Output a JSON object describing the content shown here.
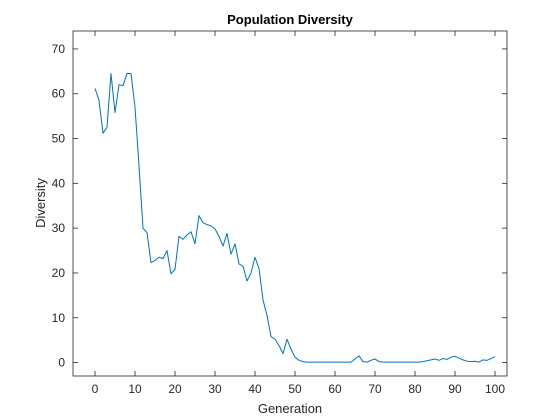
{
  "chart_data": {
    "type": "line",
    "title": "Population Diversity",
    "xlabel": "Generation",
    "ylabel": "Diversity",
    "xlim": [
      -5.5,
      103
    ],
    "ylim": [
      -3,
      74
    ],
    "xticks": [
      0,
      10,
      20,
      30,
      40,
      50,
      60,
      70,
      80,
      90,
      100
    ],
    "yticks": [
      0,
      10,
      20,
      30,
      40,
      50,
      60,
      70
    ],
    "grid": false,
    "legend": "none",
    "colors": {
      "line": "#0072BD",
      "axis": "#262626"
    },
    "series": [
      {
        "x": [
          0,
          1,
          2,
          3,
          4,
          5,
          6,
          7,
          8,
          9,
          10,
          11,
          12,
          13,
          14,
          15,
          16,
          17,
          18,
          19,
          20,
          21,
          22,
          23,
          24,
          25,
          26,
          27,
          28,
          29,
          30,
          31,
          32,
          33,
          34,
          35,
          36,
          37,
          38,
          39,
          40,
          41,
          42,
          43,
          44,
          45,
          46,
          47,
          48,
          49,
          50,
          51,
          52,
          53,
          54,
          55,
          56,
          57,
          58,
          59,
          60,
          61,
          62,
          63,
          64,
          65,
          66,
          67,
          68,
          69,
          70,
          71,
          72,
          73,
          74,
          75,
          76,
          77,
          78,
          79,
          80,
          81,
          82,
          83,
          84,
          85,
          86,
          87,
          88,
          89,
          90,
          91,
          92,
          93,
          94,
          95,
          96,
          97,
          98,
          99,
          100
        ],
        "y": [
          61.2,
          58.5,
          51.2,
          52.5,
          64.5,
          55.8,
          62.0,
          61.8,
          64.5,
          64.5,
          57.0,
          44.0,
          30.0,
          29.0,
          22.3,
          22.8,
          23.5,
          23.2,
          25.0,
          19.8,
          20.8,
          28.2,
          27.5,
          28.5,
          29.2,
          26.5,
          32.8,
          31.2,
          30.8,
          30.5,
          29.8,
          28.2,
          26.0,
          28.8,
          24.2,
          26.5,
          22.0,
          21.5,
          18.2,
          20.0,
          23.5,
          21.0,
          14.0,
          10.5,
          5.8,
          5.2,
          3.8,
          2.0,
          5.2,
          3.0,
          1.2,
          0.5,
          0.2,
          0.1,
          0.1,
          0.1,
          0.1,
          0.1,
          0.1,
          0.1,
          0.1,
          0.1,
          0.1,
          0.1,
          0.1,
          0.8,
          1.5,
          0.2,
          0.1,
          0.5,
          0.8,
          0.2,
          0.1,
          0.1,
          0.1,
          0.1,
          0.1,
          0.1,
          0.1,
          0.1,
          0.1,
          0.1,
          0.2,
          0.4,
          0.6,
          0.8,
          0.5,
          0.9,
          0.7,
          1.2,
          1.4,
          1.0,
          0.6,
          0.3,
          0.2,
          0.3,
          0.1,
          0.6,
          0.5,
          0.9,
          1.3
        ]
      }
    ]
  }
}
